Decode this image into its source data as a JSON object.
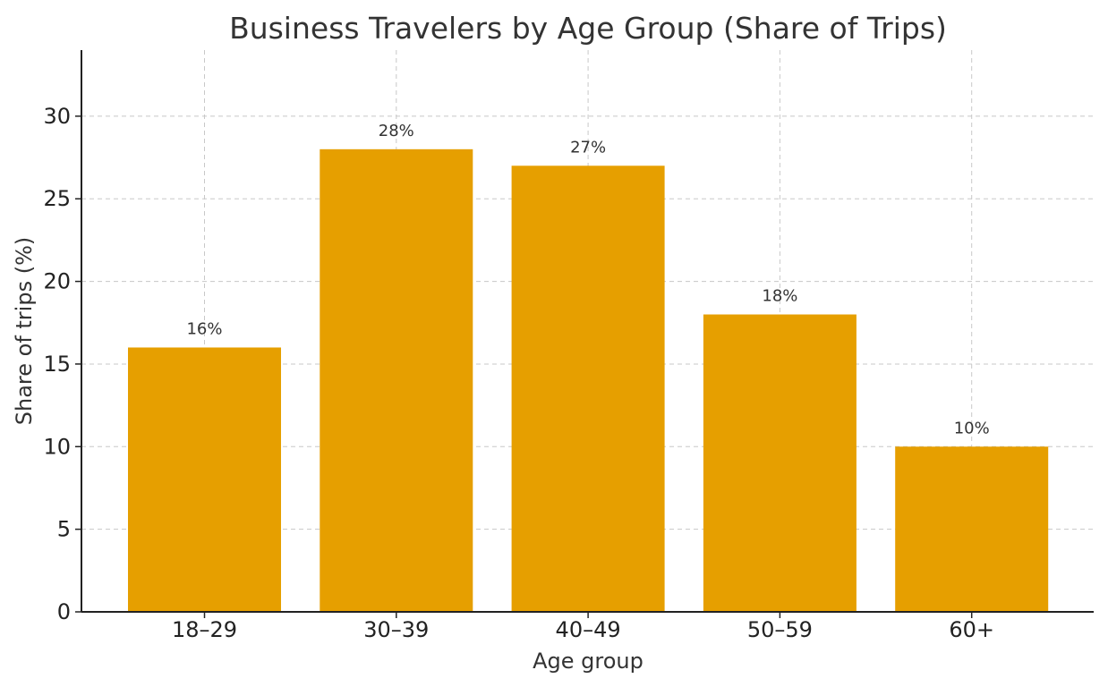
{
  "chart_data": {
    "type": "bar",
    "title": "Business Travelers by Age Group (Share of Trips)",
    "xlabel": "Age group",
    "ylabel": "Share of trips (%)",
    "categories": [
      "18–29",
      "30–39",
      "40–49",
      "50–59",
      "60+"
    ],
    "values": [
      16,
      28,
      27,
      18,
      10
    ],
    "data_labels": [
      "16%",
      "28%",
      "27%",
      "18%",
      "10%"
    ],
    "ylim": [
      0,
      34
    ],
    "yticks": [
      0,
      5,
      10,
      15,
      20,
      25,
      30
    ],
    "grid": true,
    "bar_color": "#E69F00"
  }
}
